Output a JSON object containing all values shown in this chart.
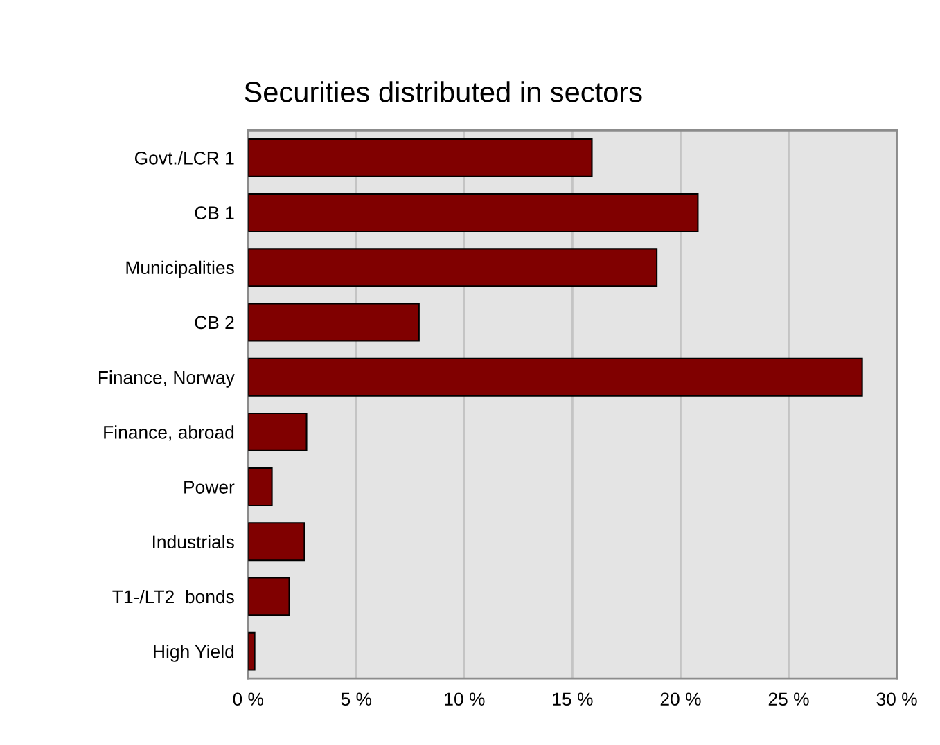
{
  "chart_data": {
    "type": "bar",
    "orientation": "horizontal",
    "title": "Securities distributed in sectors",
    "categories": [
      "Govt./LCR 1",
      "CB 1",
      "Municipalities",
      "CB 2",
      "Finance, Norway",
      "Finance, abroad",
      "Power",
      "Industrials",
      "T1-/LT2  bonds",
      "High Yield"
    ],
    "values": [
      15.9,
      20.8,
      18.9,
      7.9,
      28.4,
      2.7,
      1.1,
      2.6,
      1.9,
      0.3
    ],
    "color": "#800000",
    "xlim": [
      0,
      30
    ],
    "xticks": [
      {
        "value": 0,
        "label": "0 %"
      },
      {
        "value": 5,
        "label": "5 %"
      },
      {
        "value": 10,
        "label": "10 %"
      },
      {
        "value": 15,
        "label": "15 %"
      },
      {
        "value": 20,
        "label": "20 %"
      },
      {
        "value": 25,
        "label": "25 %"
      },
      {
        "value": 30,
        "label": "30 %"
      }
    ],
    "grid": "x",
    "legend": false
  }
}
